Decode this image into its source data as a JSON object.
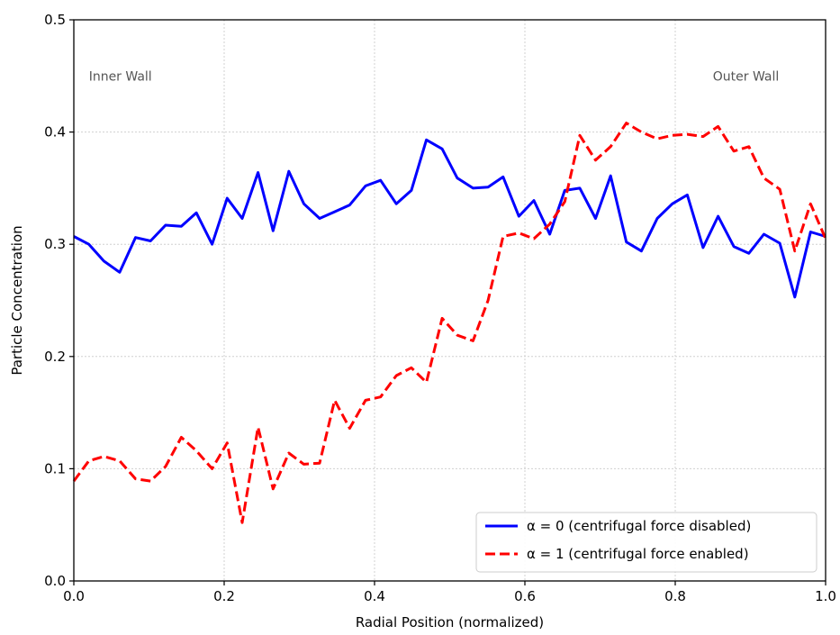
{
  "chart_data": {
    "type": "line",
    "xlabel": "Radial Position (normalized)",
    "ylabel": "Particle Concentration",
    "xlim": [
      0.0,
      1.0
    ],
    "ylim": [
      0.0,
      0.5
    ],
    "xticks": [
      "0.0",
      "0.2",
      "0.4",
      "0.6",
      "0.8",
      "1.0"
    ],
    "yticks": [
      "0.0",
      "0.1",
      "0.2",
      "0.3",
      "0.4",
      "0.5"
    ],
    "grid": true,
    "legend_position": "lower-right",
    "annotations": [
      {
        "text": "Inner Wall",
        "x": 0.02,
        "y": 0.45
      },
      {
        "text": "Outer Wall",
        "x": 0.85,
        "y": 0.45
      }
    ],
    "x": [
      0.0,
      0.02,
      0.04,
      0.061,
      0.082,
      0.102,
      0.122,
      0.143,
      0.163,
      0.184,
      0.204,
      0.224,
      0.245,
      0.265,
      0.286,
      0.306,
      0.327,
      0.347,
      0.367,
      0.388,
      0.408,
      0.429,
      0.449,
      0.469,
      0.49,
      0.51,
      0.531,
      0.551,
      0.571,
      0.592,
      0.612,
      0.633,
      0.653,
      0.673,
      0.694,
      0.714,
      0.735,
      0.755,
      0.776,
      0.796,
      0.816,
      0.837,
      0.857,
      0.878,
      0.898,
      0.918,
      0.939,
      0.959,
      0.98,
      1.0
    ],
    "series": [
      {
        "name": "α = 0 (centrifugal force disabled)",
        "color": "#0000ff",
        "style": "solid",
        "values": [
          0.307,
          0.3,
          0.285,
          0.275,
          0.306,
          0.303,
          0.317,
          0.316,
          0.328,
          0.3,
          0.341,
          0.323,
          0.364,
          0.312,
          0.365,
          0.336,
          0.323,
          0.329,
          0.335,
          0.352,
          0.357,
          0.336,
          0.348,
          0.393,
          0.385,
          0.359,
          0.35,
          0.351,
          0.36,
          0.325,
          0.339,
          0.309,
          0.348,
          0.35,
          0.323,
          0.361,
          0.302,
          0.294,
          0.323,
          0.336,
          0.344,
          0.297,
          0.325,
          0.298,
          0.292,
          0.309,
          0.301,
          0.253,
          0.311,
          0.307
        ]
      },
      {
        "name": "α = 1 (centrifugal force enabled)",
        "color": "#ff0000",
        "style": "dashed",
        "values": [
          0.089,
          0.107,
          0.111,
          0.107,
          0.091,
          0.089,
          0.102,
          0.128,
          0.116,
          0.1,
          0.123,
          0.052,
          0.137,
          0.082,
          0.114,
          0.104,
          0.105,
          0.161,
          0.136,
          0.161,
          0.164,
          0.183,
          0.19,
          0.177,
          0.234,
          0.219,
          0.214,
          0.25,
          0.307,
          0.31,
          0.305,
          0.318,
          0.338,
          0.397,
          0.375,
          0.387,
          0.408,
          0.4,
          0.394,
          0.397,
          0.398,
          0.396,
          0.405,
          0.383,
          0.387,
          0.359,
          0.349,
          0.294,
          0.336,
          0.305
        ]
      }
    ]
  }
}
